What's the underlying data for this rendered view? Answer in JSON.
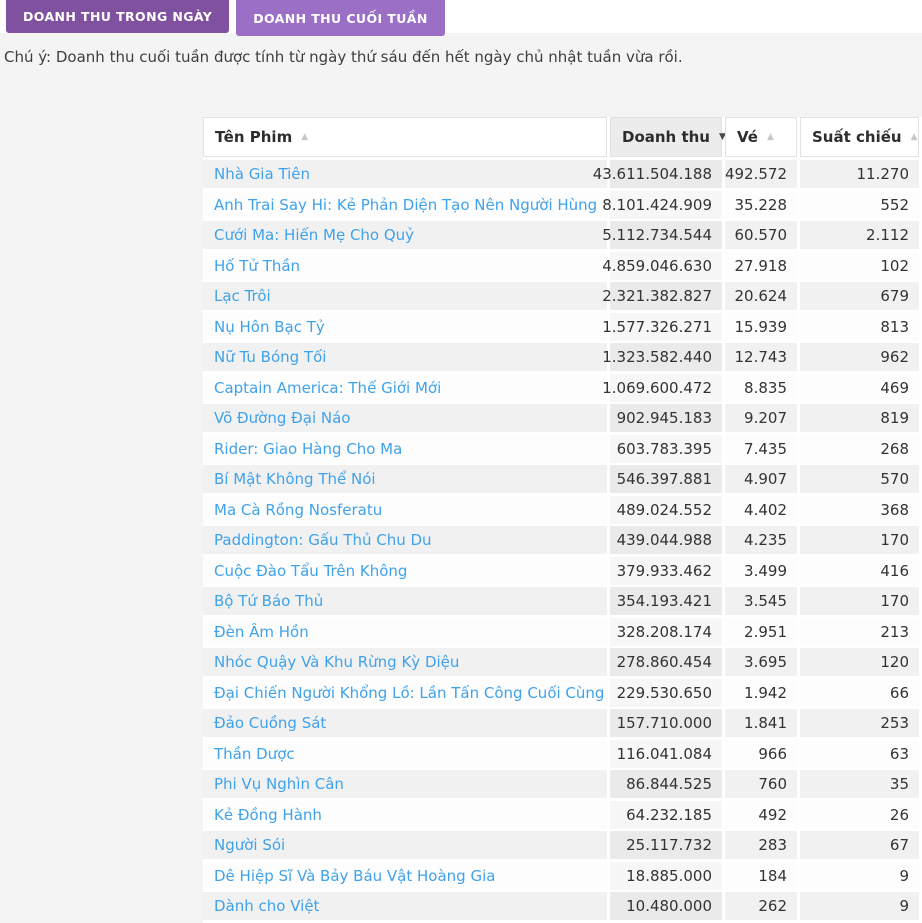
{
  "tabs": [
    {
      "label": "DOANH THU TRONG NGÀY",
      "active": false
    },
    {
      "label": "DOANH THU CUỐI TUẦN",
      "active": true
    }
  ],
  "note": "Chú ý: Doanh thu cuối tuần được tính từ ngày thứ sáu đến hết ngày chủ nhật tuần vừa rồi.",
  "colors": {
    "tab_inactive": "#80519f",
    "tab_active": "#9b6fc5",
    "link": "#3fa2eb",
    "stripe": "#f1f1f1",
    "sorted_stripe": "#eaeaea",
    "sorted_even": "#f7f7f7"
  },
  "table": {
    "columns": [
      {
        "label": "Tên Phim",
        "sort_state": "asc-inactive"
      },
      {
        "label": "Doanh thu",
        "sort_state": "desc-active"
      },
      {
        "label": "Vé",
        "sort_state": "asc-inactive"
      },
      {
        "label": "Suất chiếu",
        "sort_state": "asc-inactive"
      }
    ],
    "sort_icons": {
      "asc": "▲",
      "desc": "▼"
    },
    "rows": [
      {
        "name": "Nhà Gia Tiên",
        "doanh_thu": "43.611.504.188",
        "ve": "492.572",
        "suat_chieu": "11.270"
      },
      {
        "name": "Anh Trai Say Hi: Kẻ Phản Diện Tạo Nên Người Hùng",
        "doanh_thu": "8.101.424.909",
        "ve": "35.228",
        "suat_chieu": "552"
      },
      {
        "name": "Cưới Ma: Hiến Mẹ Cho Quỷ",
        "doanh_thu": "5.112.734.544",
        "ve": "60.570",
        "suat_chieu": "2.112"
      },
      {
        "name": "Hố Tử Thần",
        "doanh_thu": "4.859.046.630",
        "ve": "27.918",
        "suat_chieu": "102"
      },
      {
        "name": "Lạc Trôi",
        "doanh_thu": "2.321.382.827",
        "ve": "20.624",
        "suat_chieu": "679"
      },
      {
        "name": "Nụ Hôn Bạc Tỷ",
        "doanh_thu": "1.577.326.271",
        "ve": "15.939",
        "suat_chieu": "813"
      },
      {
        "name": "Nữ Tu Bóng Tối",
        "doanh_thu": "1.323.582.440",
        "ve": "12.743",
        "suat_chieu": "962"
      },
      {
        "name": "Captain America: Thế Giới Mới",
        "doanh_thu": "1.069.600.472",
        "ve": "8.835",
        "suat_chieu": "469"
      },
      {
        "name": "Võ Đường Đại Náo",
        "doanh_thu": "902.945.183",
        "ve": "9.207",
        "suat_chieu": "819"
      },
      {
        "name": "Rider: Giao Hàng Cho Ma",
        "doanh_thu": "603.783.395",
        "ve": "7.435",
        "suat_chieu": "268"
      },
      {
        "name": "Bí Mật Không Thể Nói",
        "doanh_thu": "546.397.881",
        "ve": "4.907",
        "suat_chieu": "570"
      },
      {
        "name": "Ma Cà Rồng Nosferatu",
        "doanh_thu": "489.024.552",
        "ve": "4.402",
        "suat_chieu": "368"
      },
      {
        "name": "Paddington: Gấu Thủ Chu Du",
        "doanh_thu": "439.044.988",
        "ve": "4.235",
        "suat_chieu": "170"
      },
      {
        "name": "Cuộc Đào Tẩu Trên Không",
        "doanh_thu": "379.933.462",
        "ve": "3.499",
        "suat_chieu": "416"
      },
      {
        "name": "Bộ Tứ Báo Thủ",
        "doanh_thu": "354.193.421",
        "ve": "3.545",
        "suat_chieu": "170"
      },
      {
        "name": "Đèn Âm Hồn",
        "doanh_thu": "328.208.174",
        "ve": "2.951",
        "suat_chieu": "213"
      },
      {
        "name": "Nhóc Quậy Và Khu Rừng Kỳ Diệu",
        "doanh_thu": "278.860.454",
        "ve": "3.695",
        "suat_chieu": "120"
      },
      {
        "name": "Đại Chiến Người Khổng Lồ: Lần Tấn Công Cuối Cùng",
        "doanh_thu": "229.530.650",
        "ve": "1.942",
        "suat_chieu": "66"
      },
      {
        "name": "Đảo Cuồng Sát",
        "doanh_thu": "157.710.000",
        "ve": "1.841",
        "suat_chieu": "253"
      },
      {
        "name": "Thần Dược",
        "doanh_thu": "116.041.084",
        "ve": "966",
        "suat_chieu": "63"
      },
      {
        "name": "Phi Vụ Nghìn Cân",
        "doanh_thu": "86.844.525",
        "ve": "760",
        "suat_chieu": "35"
      },
      {
        "name": "Kẻ Đồng Hành",
        "doanh_thu": "64.232.185",
        "ve": "492",
        "suat_chieu": "26"
      },
      {
        "name": "Người Sói",
        "doanh_thu": "25.117.732",
        "ve": "283",
        "suat_chieu": "67"
      },
      {
        "name": "Dê Hiệp Sĩ Và Bảy Báu Vật Hoàng Gia",
        "doanh_thu": "18.885.000",
        "ve": "184",
        "suat_chieu": "9"
      },
      {
        "name": "Dành cho Việt",
        "doanh_thu": "10.480.000",
        "ve": "262",
        "suat_chieu": "9"
      }
    ]
  }
}
